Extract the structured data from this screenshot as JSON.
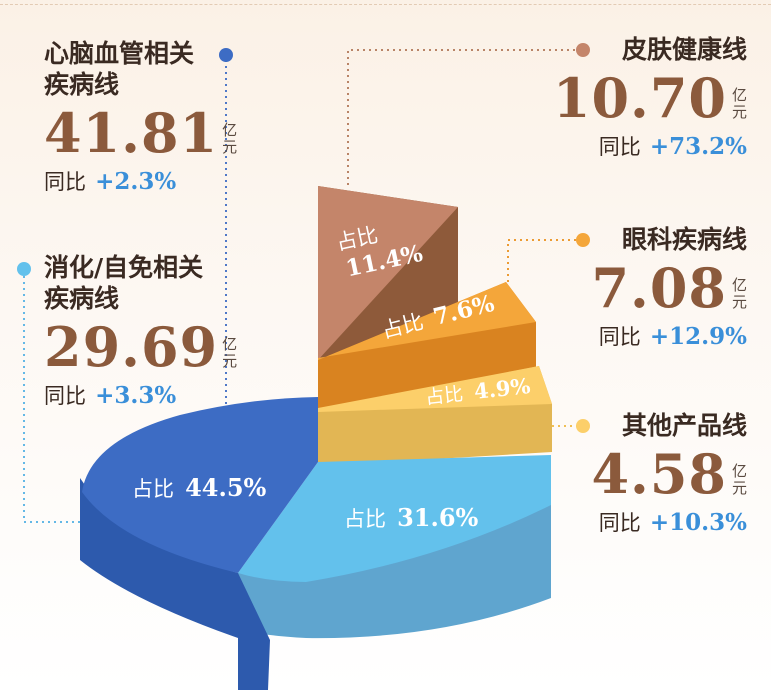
{
  "unit": "亿元",
  "growth_prefix": "同比",
  "slice_prefix": "占比",
  "chart_data": {
    "type": "pie",
    "categories": [
      "心脑血管相关疾病线",
      "消化/自免相关疾病线",
      "皮肤健康线",
      "眼科疾病线",
      "其他产品线"
    ],
    "series": [
      {
        "name": "",
        "values": [
          41.81,
          29.69,
          10.7,
          7.08,
          4.58
        ]
      }
    ],
    "shares": [
      44.5,
      31.6,
      11.4,
      7.6,
      4.9
    ],
    "growth": [
      2.3,
      3.3,
      73.2,
      12.9,
      10.3
    ],
    "colors": [
      "#3d6cc4",
      "#63c1ec",
      "#c4856a",
      "#f4a63a",
      "#fccf6a"
    ],
    "title": "",
    "legend": "callouts-around"
  },
  "labels": {
    "cardio": {
      "name1": "心脑血管相关",
      "name2": "疾病线",
      "value": "41.81",
      "growth": "+2.3%",
      "share": "44.5%"
    },
    "digest": {
      "name1": "消化/自免相关",
      "name2": "疾病线",
      "value": "29.69",
      "growth": "+3.3%",
      "share": "31.6%"
    },
    "skin": {
      "name": "皮肤健康线",
      "value": "10.70",
      "growth": "+73.2%",
      "share": "11.4%"
    },
    "eye": {
      "name": "眼科疾病线",
      "value": "7.08",
      "growth": "+12.9%",
      "share": "7.6%"
    },
    "other": {
      "name": "其他产品线",
      "value": "4.58",
      "growth": "+10.3%",
      "share": "4.9%"
    }
  }
}
